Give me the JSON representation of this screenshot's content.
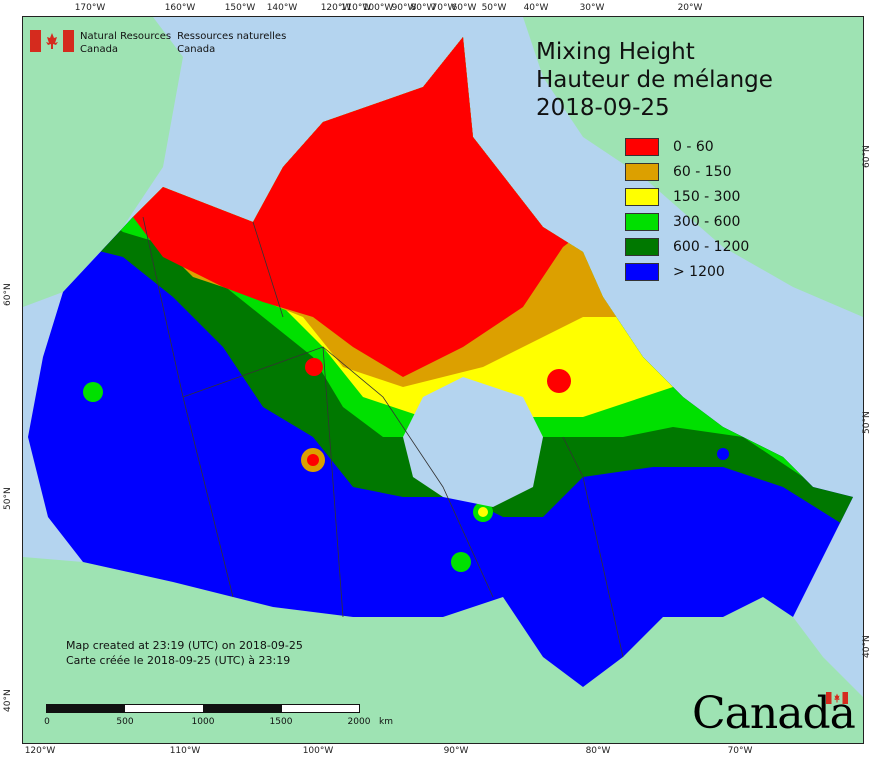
{
  "org": {
    "name_en_line1": "Natural Resources",
    "name_en_line2": "Canada",
    "name_fr_line1": "Ressources naturelles",
    "name_fr_line2": "Canada"
  },
  "map": {
    "title_en": "Mixing Height",
    "title_fr": "Hauteur de mélange",
    "date": "2018-09-25",
    "colors": {
      "ocean": "#b4d4ef",
      "foreign_land": "#9ee3b3",
      "border": "#333333"
    },
    "legend": [
      {
        "label": "0 - 60",
        "color": "#ff0000"
      },
      {
        "label": "60 - 150",
        "color": "#dca000"
      },
      {
        "label": "150 - 300",
        "color": "#ffff00"
      },
      {
        "label": "300 - 600",
        "color": "#00e000"
      },
      {
        "label": "600 - 1200",
        "color": "#007800"
      },
      {
        "label": "> 1200",
        "color": "#0000ff"
      }
    ],
    "credit_en": "Map created at 23:19 (UTC) on 2018-09-25",
    "credit_fr": "Carte créée le 2018-09-25 (UTC) à 23:19",
    "scale": {
      "labels": [
        "0",
        "500",
        "1000",
        "1500",
        "2000"
      ],
      "unit": "km"
    },
    "top_ticks": [
      "170°W",
      "160°W",
      "150°W",
      "140°W",
      "120°W",
      "110°W",
      "100°W",
      "90°W",
      "80°W",
      "70°W",
      "60°W",
      "50°W",
      "40°W",
      "30°W",
      "20°W"
    ],
    "bottom_ticks": [
      "120°W",
      "110°W",
      "100°W",
      "90°W",
      "80°W",
      "70°W"
    ],
    "left_ticks": [
      "60°N",
      "50°N",
      "40°N"
    ],
    "right_ticks": [
      "60°N",
      "50°N",
      "40°N"
    ],
    "wordmark": "Canada"
  }
}
